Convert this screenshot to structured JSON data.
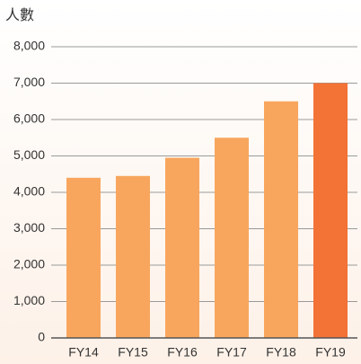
{
  "chart_data": {
    "type": "bar",
    "y_axis_label": "人數",
    "categories": [
      "FY14",
      "FY15",
      "FY16",
      "FY17",
      "FY18",
      "FY19"
    ],
    "values": [
      4400,
      4450,
      4950,
      5500,
      6500,
      7000
    ],
    "colors": [
      "#f8a65d",
      "#f8a65d",
      "#f8a65d",
      "#f8a65d",
      "#f8a65d",
      "#f37235"
    ],
    "ylim": [
      0,
      8000
    ],
    "yticks": [
      0,
      {
        "value": 1000,
        "label": "1,000"
      },
      {
        "value": 2000,
        "label": "2,000"
      },
      {
        "value": 3000,
        "label": "3,000"
      },
      {
        "value": 4000,
        "label": "4,000"
      },
      {
        "value": 5000,
        "label": "5,000"
      },
      {
        "value": 6000,
        "label": "6,000"
      },
      {
        "value": 7000,
        "label": "7,000"
      },
      {
        "value": 8000,
        "label": "8,000"
      }
    ],
    "grid": true
  }
}
